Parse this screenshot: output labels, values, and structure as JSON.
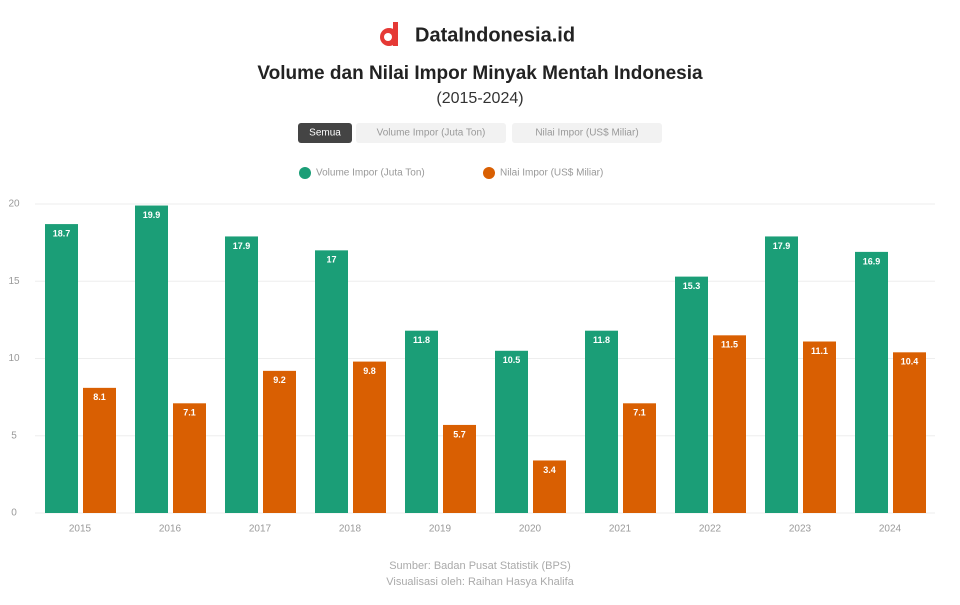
{
  "brand": "DataIndonesia.id",
  "buttons": [
    "Semua",
    "Volume Impor (Juta Ton)",
    "Nilai Impor (US$ Miliar)"
  ],
  "footer": [
    "Sumber: Badan Pusat Statistik (BPS)",
    "Visualisasi oleh: Raihan Hasya Khalifa"
  ],
  "chart_data": {
    "type": "bar",
    "title": "Volume dan Nilai Impor Minyak Mentah Indonesia",
    "subtitle": "(2015-2024)",
    "categories": [
      "2015",
      "2016",
      "2017",
      "2018",
      "2019",
      "2020",
      "2021",
      "2022",
      "2023",
      "2024"
    ],
    "series": [
      {
        "name": "Volume Impor (Juta Ton)",
        "color": "#1b9e77",
        "values": [
          18.7,
          19.9,
          17.9,
          17.0,
          11.8,
          10.5,
          11.8,
          15.3,
          17.9,
          16.9
        ]
      },
      {
        "name": "Nilai Impor (US$ Miliar)",
        "color": "#d95f02",
        "values": [
          8.1,
          7.1,
          9.2,
          9.8,
          5.7,
          3.4,
          7.1,
          11.5,
          11.1,
          10.4
        ]
      }
    ],
    "ylim": [
      0,
      20
    ],
    "yticks": [
      0,
      5,
      10,
      15,
      20
    ],
    "grid": true,
    "legend": "top"
  }
}
